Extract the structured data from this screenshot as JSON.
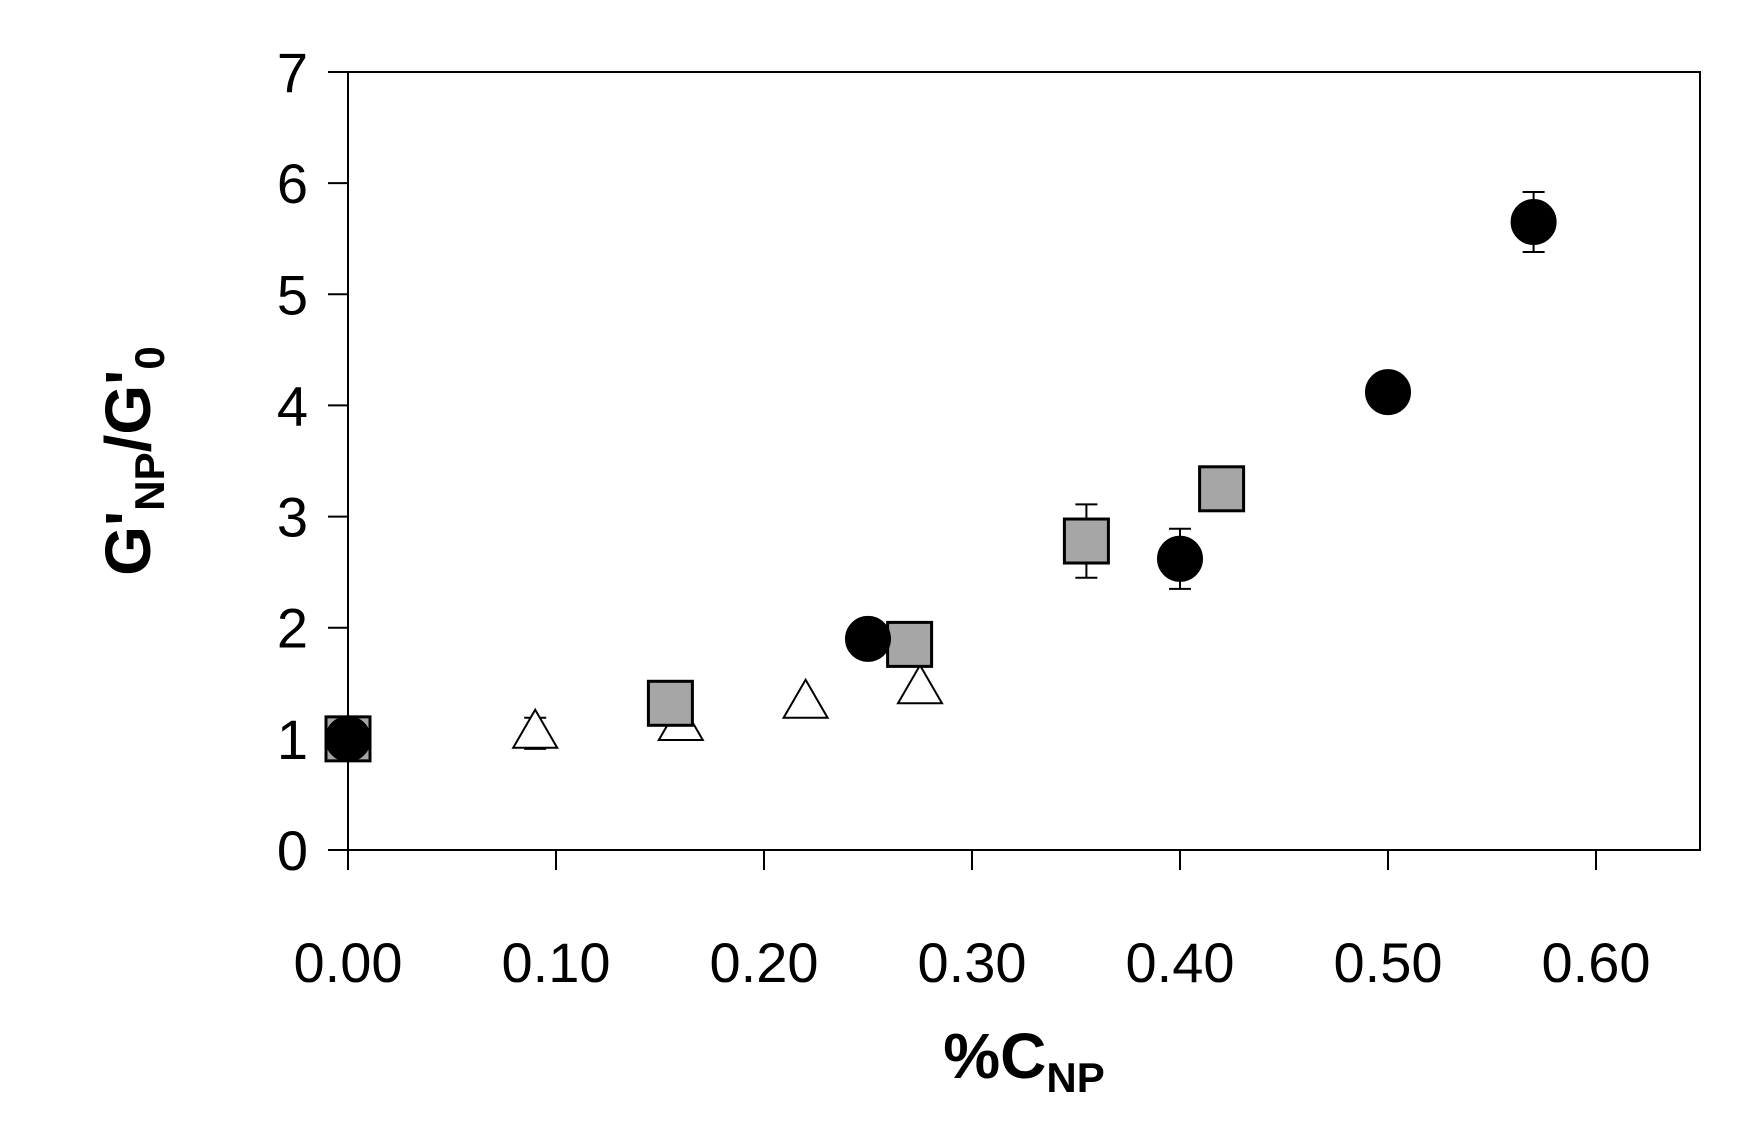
{
  "chart_data": {
    "type": "scatter",
    "title": "",
    "xlabel": {
      "main": "%C",
      "sub": "NP"
    },
    "ylabel": {
      "p1": "G'",
      "s1": "NP",
      "p2": "/G'",
      "s2": "0"
    },
    "xlim": [
      0,
      0.65
    ],
    "ylim": [
      0,
      7
    ],
    "x_ticks": [
      "0.00",
      "0.10",
      "0.20",
      "0.30",
      "0.40",
      "0.50",
      "0.60"
    ],
    "y_ticks": [
      "0",
      "1",
      "2",
      "3",
      "4",
      "5",
      "6",
      "7"
    ],
    "grid": false,
    "legend": "none",
    "series": [
      {
        "marker": "circle",
        "color": "#000000",
        "points": [
          {
            "x": 0.0,
            "y": 1.0,
            "err": 0.0
          },
          {
            "x": 0.25,
            "y": 1.9,
            "err": 0.0
          },
          {
            "x": 0.4,
            "y": 2.62,
            "err": 0.27
          },
          {
            "x": 0.5,
            "y": 4.12,
            "err": 0.12
          },
          {
            "x": 0.57,
            "y": 5.65,
            "err": 0.27
          }
        ]
      },
      {
        "marker": "square",
        "color": "#a6a6a6",
        "points": [
          {
            "x": 0.0,
            "y": 1.0,
            "err": 0.0
          },
          {
            "x": 0.155,
            "y": 1.32,
            "err": 0.0
          },
          {
            "x": 0.27,
            "y": 1.85,
            "err": 0.0
          },
          {
            "x": 0.355,
            "y": 2.78,
            "err": 0.33
          },
          {
            "x": 0.42,
            "y": 3.25,
            "err": 0.18
          }
        ]
      },
      {
        "marker": "triangle",
        "color": "#ffffff",
        "points": [
          {
            "x": 0.0,
            "y": 1.0,
            "err": 0.0
          },
          {
            "x": 0.09,
            "y": 1.05,
            "err": 0.14
          },
          {
            "x": 0.16,
            "y": 1.12,
            "err": 0.0
          },
          {
            "x": 0.22,
            "y": 1.32,
            "err": 0.0
          },
          {
            "x": 0.275,
            "y": 1.45,
            "err": 0.0
          }
        ]
      }
    ]
  }
}
